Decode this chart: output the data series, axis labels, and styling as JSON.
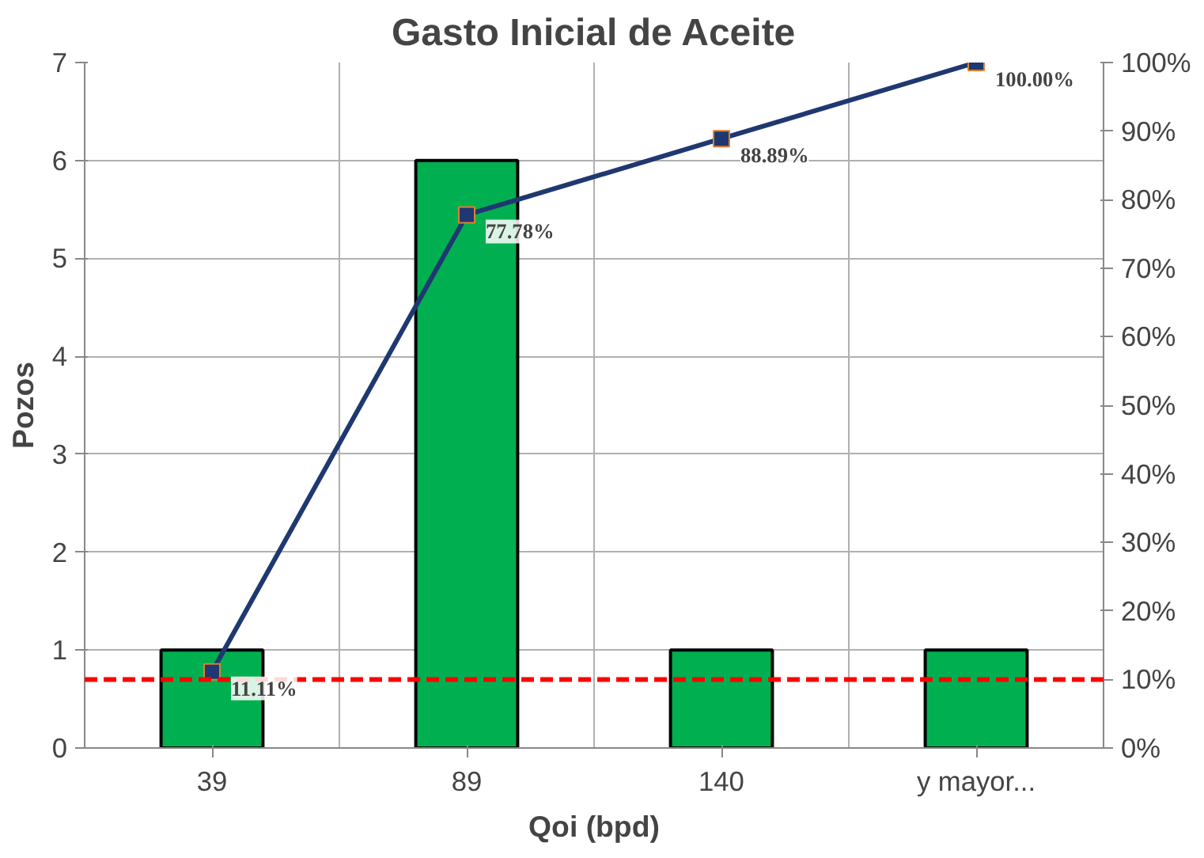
{
  "chart_data": {
    "type": "bar",
    "title": "Gasto Inicial de Aceite",
    "xlabel": "Qoi (bpd)",
    "ylabel": "Pozos",
    "categories": [
      "39",
      "89",
      "140",
      "y mayor..."
    ],
    "series": [
      {
        "color": "#00b050",
        "values": [
          1,
          6,
          1,
          1
        ]
      },
      {
        "type": "line",
        "axis": "y2",
        "color": "#1f3871",
        "marker": "square",
        "values": [
          11.11,
          77.78,
          88.89,
          100
        ],
        "value_labels": [
          "11.11%",
          "77.78%",
          "88.89%",
          "100.00%"
        ]
      }
    ],
    "ylim": [
      0,
      7
    ],
    "yticks": [
      0,
      1,
      2,
      3,
      4,
      5,
      6,
      7
    ],
    "y2lim": [
      0,
      100
    ],
    "y2ticks": [
      {
        "value": 0,
        "label": "0%"
      },
      {
        "value": 10,
        "label": "10%"
      },
      {
        "value": 20,
        "label": "20%"
      },
      {
        "value": 30,
        "label": "30%"
      },
      {
        "value": 40,
        "label": "40%"
      },
      {
        "value": 50,
        "label": "50%"
      },
      {
        "value": 60,
        "label": "60%"
      },
      {
        "value": 70,
        "label": "70%"
      },
      {
        "value": 80,
        "label": "80%"
      },
      {
        "value": 90,
        "label": "90%"
      },
      {
        "value": 100,
        "label": "100%"
      }
    ],
    "ref_lines": [
      {
        "axis": "y2",
        "value": 10,
        "color": "#ff0000",
        "line_style": "dashed"
      }
    ],
    "grid": true
  }
}
